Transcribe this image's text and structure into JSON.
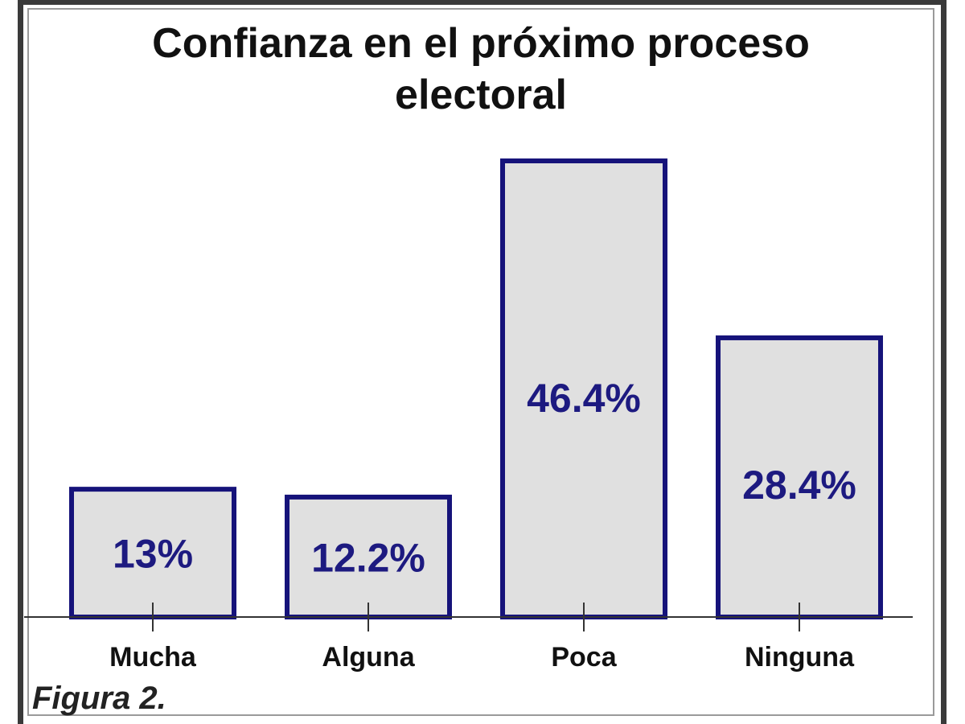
{
  "chart_data": {
    "type": "bar",
    "title_lines": [
      "Confianza en el próximo proceso",
      "electoral"
    ],
    "categories": [
      "Mucha",
      "Alguna",
      "Poca",
      "Ninguna"
    ],
    "values": [
      13,
      12.2,
      46.4,
      28.4
    ],
    "value_labels": [
      "13%",
      "12.2%",
      "46.4%",
      "28.4%"
    ],
    "xlabel": "",
    "ylabel": "",
    "ylim": [
      0,
      46.4
    ],
    "grid": false,
    "legend": "none",
    "colors": {
      "bar_fill": "#e0e0e0",
      "bar_stroke": "#16137a",
      "value_text": "#1d1a80"
    }
  },
  "caption": "Figura 2."
}
